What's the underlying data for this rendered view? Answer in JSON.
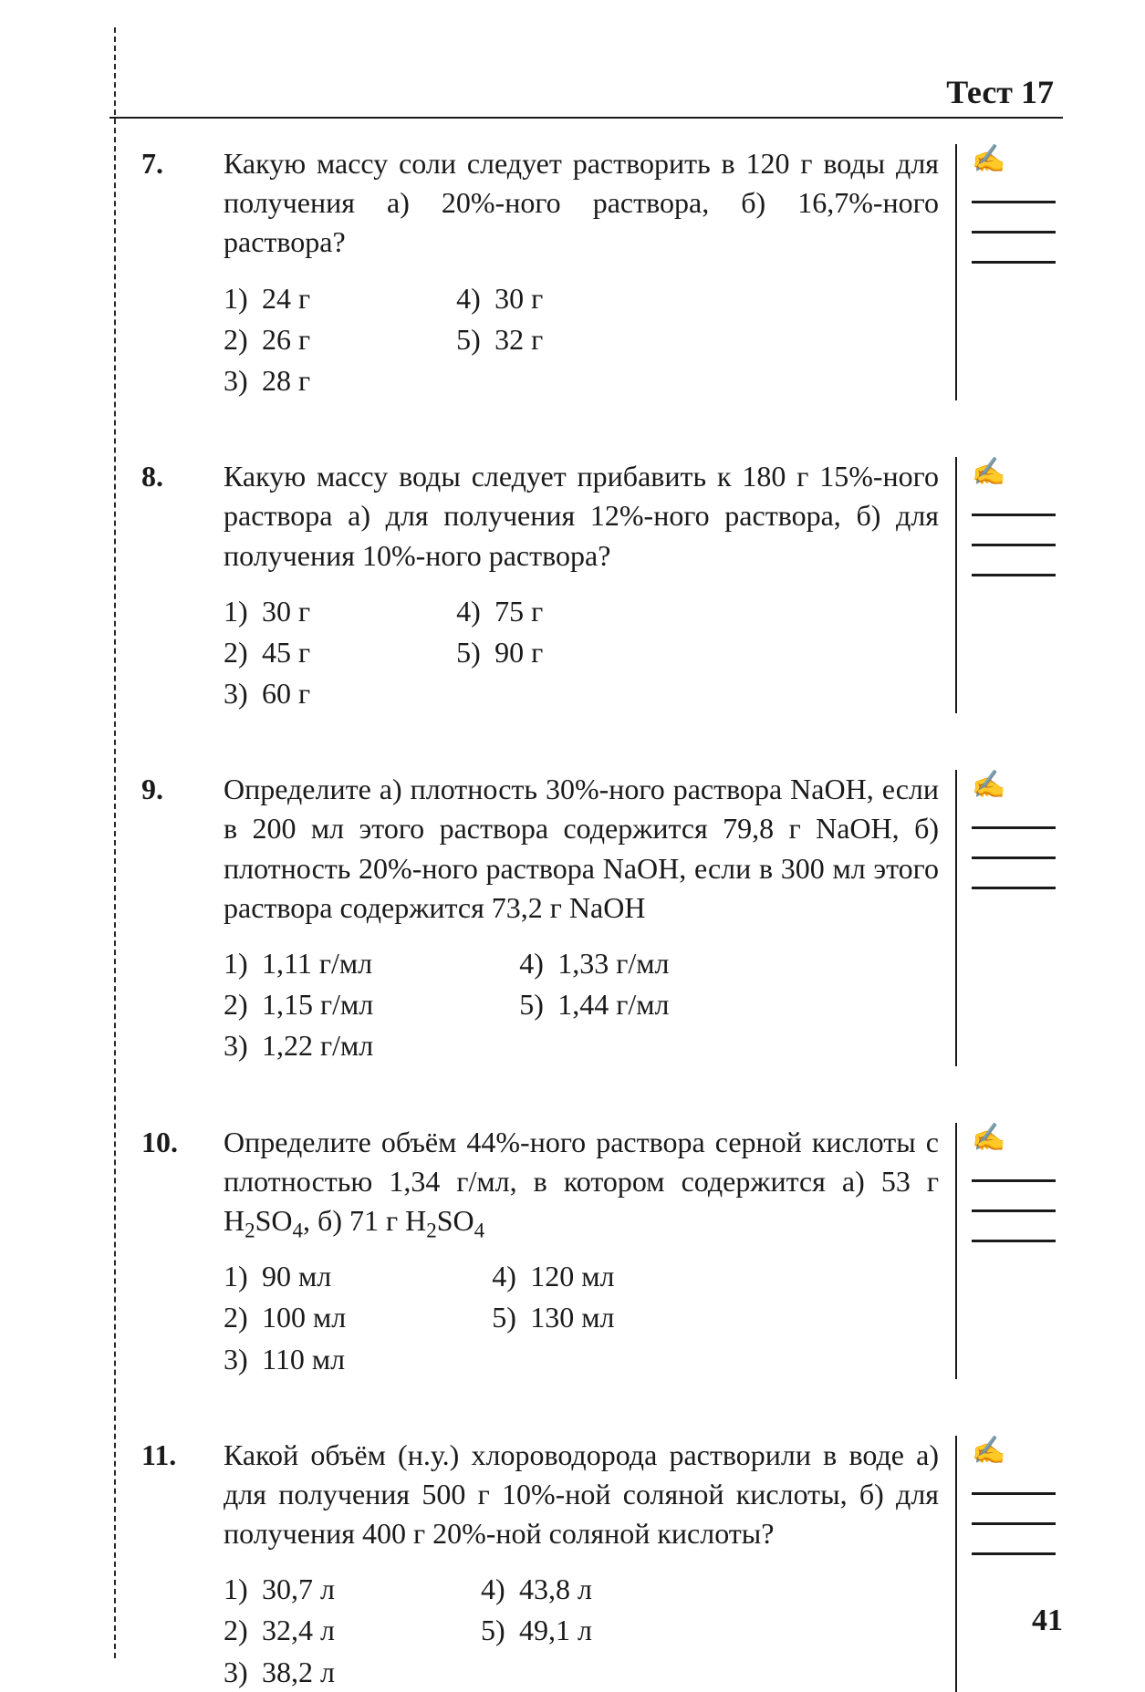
{
  "header": {
    "title": "Тест 17"
  },
  "page_number": "41",
  "pen_glyph": "✍",
  "questions": [
    {
      "num": "7.",
      "text": "Какую массу соли следует растворить в 120 г воды для получения а) 20%-ного раствора, б) 16,7%-ного раствора?",
      "col1": [
        {
          "n": "1)",
          "t": "24 г"
        },
        {
          "n": "2)",
          "t": "26 г"
        },
        {
          "n": "3)",
          "t": "28 г"
        }
      ],
      "col2": [
        {
          "n": "4)",
          "t": "30 г"
        },
        {
          "n": "5)",
          "t": "32 г"
        }
      ]
    },
    {
      "num": "8.",
      "text": "Какую массу воды следует прибавить к 180 г 15%-ного раствора а) для получения 12%-ного раствора, б) для получения 10%-ного раствора?",
      "col1": [
        {
          "n": "1)",
          "t": "30 г"
        },
        {
          "n": "2)",
          "t": "45 г"
        },
        {
          "n": "3)",
          "t": "60 г"
        }
      ],
      "col2": [
        {
          "n": "4)",
          "t": "75 г"
        },
        {
          "n": "5)",
          "t": "90 г"
        }
      ]
    },
    {
      "num": "9.",
      "text": "Определите а) плотность 30%-ного раствора NaOH, если в 200 мл этого раствора содержится 79,8 г NaOH, б) плотность 20%-ного раствора NaOH, если в 300 мл этого раствора содержится 73,2 г NaOH",
      "col1": [
        {
          "n": "1)",
          "t": "1,11 г/мл"
        },
        {
          "n": "2)",
          "t": "1,15 г/мл"
        },
        {
          "n": "3)",
          "t": "1,22 г/мл"
        }
      ],
      "col2": [
        {
          "n": "4)",
          "t": "1,33 г/мл"
        },
        {
          "n": "5)",
          "t": "1,44 г/мл"
        }
      ]
    },
    {
      "num": "10.",
      "text_html": "Определите объём 44%-ного раствора серной кислоты с плотностью 1,34 г/мл, в котором содержится а) 53 г H<sub>2</sub>SO<sub>4</sub>, б) 71 г H<sub>2</sub>SO<sub>4</sub>",
      "col1": [
        {
          "n": "1)",
          "t": "90 мл"
        },
        {
          "n": "2)",
          "t": "100 мл"
        },
        {
          "n": "3)",
          "t": "110 мл"
        }
      ],
      "col2": [
        {
          "n": "4)",
          "t": "120 мл"
        },
        {
          "n": "5)",
          "t": "130 мл"
        }
      ]
    },
    {
      "num": "11.",
      "text": "Какой объём (н.у.) хлороводорода растворили в воде а) для получения 500 г 10%-ной соляной кислоты, б) для получения 400 г 20%-ной соляной кислоты?",
      "col1": [
        {
          "n": "1)",
          "t": "30,7 л"
        },
        {
          "n": "2)",
          "t": "32,4 л"
        },
        {
          "n": "3)",
          "t": "38,2 л"
        }
      ],
      "col2": [
        {
          "n": "4)",
          "t": "43,8 л"
        },
        {
          "n": "5)",
          "t": "49,1 л"
        }
      ]
    }
  ]
}
